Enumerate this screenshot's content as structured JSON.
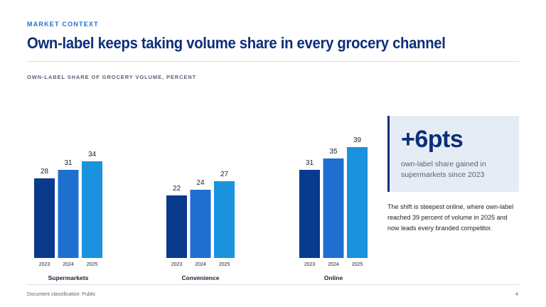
{
  "kicker": "MARKET CONTEXT",
  "title": "Own-label keeps taking volume share in every grocery channel",
  "subtitle": "OWN-LABEL SHARE OF GROCERY VOLUME, PERCENT",
  "chart_data": {
    "type": "bar",
    "ylabel": "",
    "ylim": [
      0,
      45
    ],
    "groups": [
      {
        "name": "Supermarkets",
        "categories": [
          "2023",
          "2024",
          "2025"
        ],
        "values": [
          28,
          31,
          34
        ]
      },
      {
        "name": "Convenience",
        "categories": [
          "2023",
          "2024",
          "2025"
        ],
        "values": [
          22,
          24,
          27
        ]
      },
      {
        "name": "Online",
        "categories": [
          "2023",
          "2024",
          "2025"
        ],
        "values": [
          31,
          35,
          39
        ]
      }
    ],
    "colors": [
      "#0a3a8c",
      "#1f6fd1",
      "#1a92dd"
    ],
    "grid": false,
    "legend": "none"
  },
  "callout": {
    "value": "+6pts",
    "text": "own-label share gained in supermarkets since 2023"
  },
  "body": "The shift is steepest online, where own-label reached 39 percent of volume in 2025 and now leads every branded competitor.",
  "footer": {
    "classification": "Document classification: Public",
    "page": "4"
  }
}
